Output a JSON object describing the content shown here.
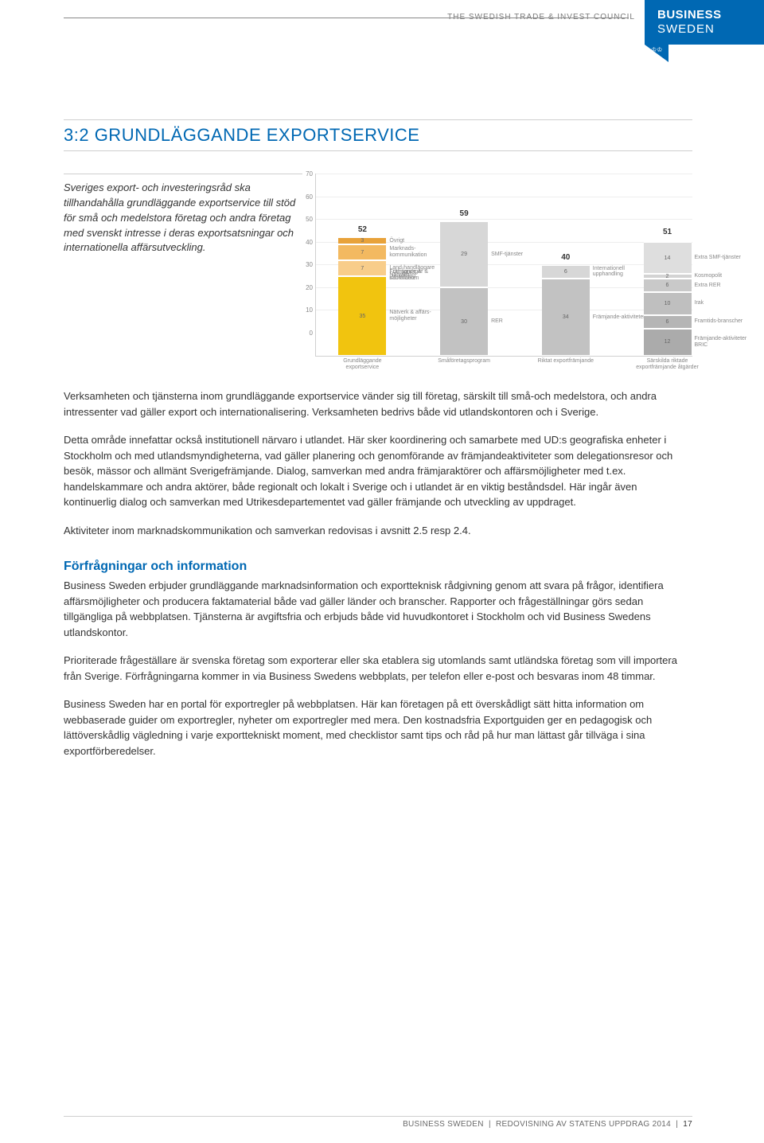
{
  "header": {
    "council_label": "THE SWEDISH TRADE & INVEST COUNCIL",
    "logo_line1": "BUSINESS",
    "logo_line2": "SWEDEN"
  },
  "section": {
    "title": "3:2  GRUNDLÄGGANDE EXPORTSERVICE"
  },
  "intro": "Sveriges export- och investeringsråd ska tillhandahålla grundläggande exportservice till stöd för små och medelstora företag och andra företag med svenskt intresse i deras exportsatsningar och internationella affärsutveckling.",
  "chart": {
    "type": "stacked-bar",
    "background_color": "#fdfdfd",
    "grid_color": "#eeeeee",
    "label_fontsize": 8,
    "ylim": [
      0,
      70
    ],
    "ytick_step": 10,
    "yticks": [
      "0",
      "10",
      "20",
      "30",
      "40",
      "50",
      "60",
      "70"
    ],
    "bars": [
      {
        "x_label": "Grundläggande exportservice",
        "total": 52,
        "left_pct": 6,
        "segments": [
          {
            "value": 3,
            "color": "#e8a23a",
            "label": "Övrigt"
          },
          {
            "value": 7,
            "color": "#f3b960",
            "label": "Marknads-kommunikation"
          },
          {
            "value": 7,
            "color": "#f8cd8a",
            "label": "Land-handläggare"
          },
          {
            "value": 0,
            "color": "#fce0b0",
            "label": "Närvaro"
          },
          {
            "value": 0,
            "color": "#fce0b0",
            "label": "Nättjänster"
          },
          {
            "value": 0,
            "color": "#fce0b0",
            "label": "Förfrågningar & information"
          },
          {
            "value": 0,
            "color": "#fce0b0",
            "label": "Främjande & samarbeten"
          },
          {
            "value": 35,
            "color": "#f1c40f",
            "label": "Nätverk & affärs-möjligheter"
          }
        ]
      },
      {
        "x_label": "Småföretagsprogram",
        "total": 59,
        "left_pct": 33,
        "segments": [
          {
            "value": 29,
            "color": "#d7d7d7",
            "label": "SMF-tjänster"
          },
          {
            "value": 30,
            "color": "#c2c2c2",
            "label": "RER"
          }
        ]
      },
      {
        "x_label": "Riktat exportfrämjande",
        "total": 40,
        "left_pct": 60,
        "segments": [
          {
            "value": 6,
            "color": "#d7d7d7",
            "label": "Internationell upphandling"
          },
          {
            "value": 34,
            "color": "#c2c2c2",
            "label": "Främjande-aktiviteter"
          }
        ]
      },
      {
        "x_label": "Särskilda riktade exportfrämjande åtgärder",
        "total": 51,
        "left_pct": 87,
        "segments": [
          {
            "value": 14,
            "color": "#dedede",
            "label": "Extra SMF-tjänster"
          },
          {
            "value": 2,
            "color": "#d3d3d3",
            "label": "Kosmopolit"
          },
          {
            "value": 6,
            "color": "#c9c9c9",
            "label": "Extra RER"
          },
          {
            "value": 10,
            "color": "#bfbfbf",
            "label": "Irak"
          },
          {
            "value": 6,
            "color": "#b5b5b5",
            "label": "Framtids-branscher"
          },
          {
            "value": 12,
            "color": "#ababab",
            "label": "Främjande-aktiviteter BRIC"
          }
        ]
      }
    ]
  },
  "paragraphs": {
    "p1": "Verksamheten och tjänsterna inom grundläggande exportservice vänder sig till företag, särskilt till små-och medelstora, och andra intressenter vad gäller export och internationalisering. Verksamheten bedrivs både vid utlandskontoren och i Sverige.",
    "p2": "Detta område innefattar också institutionell närvaro i utlandet. Här sker koordinering och samarbete med UD:s geografiska enheter i Stockholm och med utlandsmyndigheterna, vad gäller planering och genomförande av främjandeaktiviteter som delegationsresor och besök, mässor och allmänt Sverigefrämjande. Dialog, samverkan med andra främjaraktörer och affärsmöjligheter med t.ex. handelskammare och andra aktörer, både regionalt och lokalt i Sverige och i utlandet är en viktig beståndsdel. Här ingår även kontinuerlig dialog och samverkan med Utrikesdepartementet vad gäller främjande och utveckling av uppdraget.",
    "p3": "Aktiviteter inom marknadskommunikation och samverkan redovisas i avsnitt 2.5 resp 2.4."
  },
  "sub": {
    "title": "Förfrågningar och information",
    "p1": "Business Sweden erbjuder grundläggande marknadsinformation och exportteknisk rådgivning genom att svara på frågor, identifiera affärsmöjligheter och producera faktamaterial både vad gäller länder och branscher. Rapporter och frågeställningar görs sedan tillgängliga på webbplatsen. Tjänsterna är avgiftsfria och erbjuds både vid huvudkontoret i Stockholm och vid Business Swedens utlandskontor.",
    "p2": "Prioriterade frågeställare är svenska företag som exporterar eller ska etablera sig utomlands samt utländska företag som vill importera från Sverige. Förfrågningarna kommer in via Business Swedens webbplats, per telefon eller e-post och besvaras inom 48 timmar.",
    "p3": "Business Sweden har en portal för exportregler på webbplatsen. Här kan företagen på ett överskådligt sätt hitta information om webbaserade guider om exportregler, nyheter om exportregler med mera. Den kostnadsfria Exportguiden ger en pedagogisk och lättöverskådlig vägledning i varje exporttekniskt moment, med checklistor samt tips och råd på hur man lättast går tillväga i sina exportförberedelser."
  },
  "footer": {
    "source": "BUSINESS SWEDEN",
    "doc": "REDOVISNING AV STATENS UPPDRAG 2014",
    "page": "17"
  }
}
